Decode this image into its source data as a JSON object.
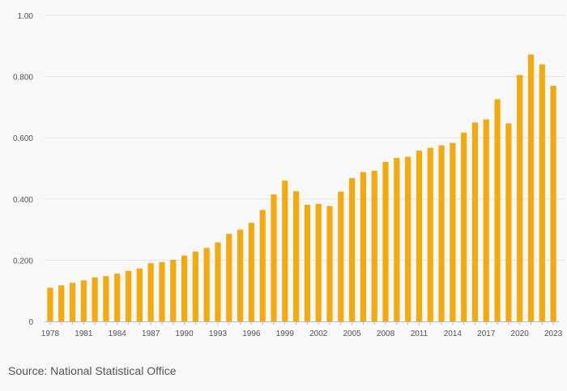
{
  "chart_data": {
    "type": "bar",
    "title": "",
    "xlabel": "",
    "ylabel": "",
    "ylim": [
      0,
      1.0
    ],
    "y_ticks": [
      {
        "value": 0,
        "label": "0"
      },
      {
        "value": 0.2,
        "label": "0.200"
      },
      {
        "value": 0.4,
        "label": "0.400"
      },
      {
        "value": 0.6,
        "label": "0.600"
      },
      {
        "value": 0.8,
        "label": "0.800"
      },
      {
        "value": 1.0,
        "label": "1.00"
      }
    ],
    "x_tick_labels": [
      "1978",
      "1981",
      "1984",
      "1987",
      "1990",
      "1993",
      "1996",
      "1999",
      "2002",
      "2005",
      "2008",
      "2011",
      "2014",
      "2017",
      "2020",
      "2023"
    ],
    "categories": [
      "1978",
      "1979",
      "1980",
      "1981",
      "1982",
      "1983",
      "1984",
      "1985",
      "1986",
      "1987",
      "1988",
      "1989",
      "1990",
      "1991",
      "1992",
      "1993",
      "1994",
      "1995",
      "1996",
      "1997",
      "1998",
      "1999",
      "2000",
      "2001",
      "2002",
      "2003",
      "2004",
      "2005",
      "2006",
      "2007",
      "2008",
      "2009",
      "2010",
      "2011",
      "2012",
      "2013",
      "2014",
      "2015",
      "2016",
      "2017",
      "2018",
      "2019",
      "2020",
      "2021",
      "2022",
      "2023"
    ],
    "values": [
      0.11,
      0.118,
      0.126,
      0.134,
      0.144,
      0.148,
      0.156,
      0.165,
      0.173,
      0.19,
      0.194,
      0.201,
      0.215,
      0.228,
      0.24,
      0.258,
      0.286,
      0.3,
      0.322,
      0.364,
      0.415,
      0.46,
      0.425,
      0.381,
      0.384,
      0.377,
      0.424,
      0.468,
      0.488,
      0.492,
      0.521,
      0.534,
      0.538,
      0.558,
      0.567,
      0.575,
      0.583,
      0.617,
      0.65,
      0.66,
      0.726,
      0.647,
      0.805,
      0.872,
      0.84,
      0.77
    ],
    "bar_color": "#f4a90c",
    "grid": true
  },
  "source": "Source: National Statistical Office"
}
